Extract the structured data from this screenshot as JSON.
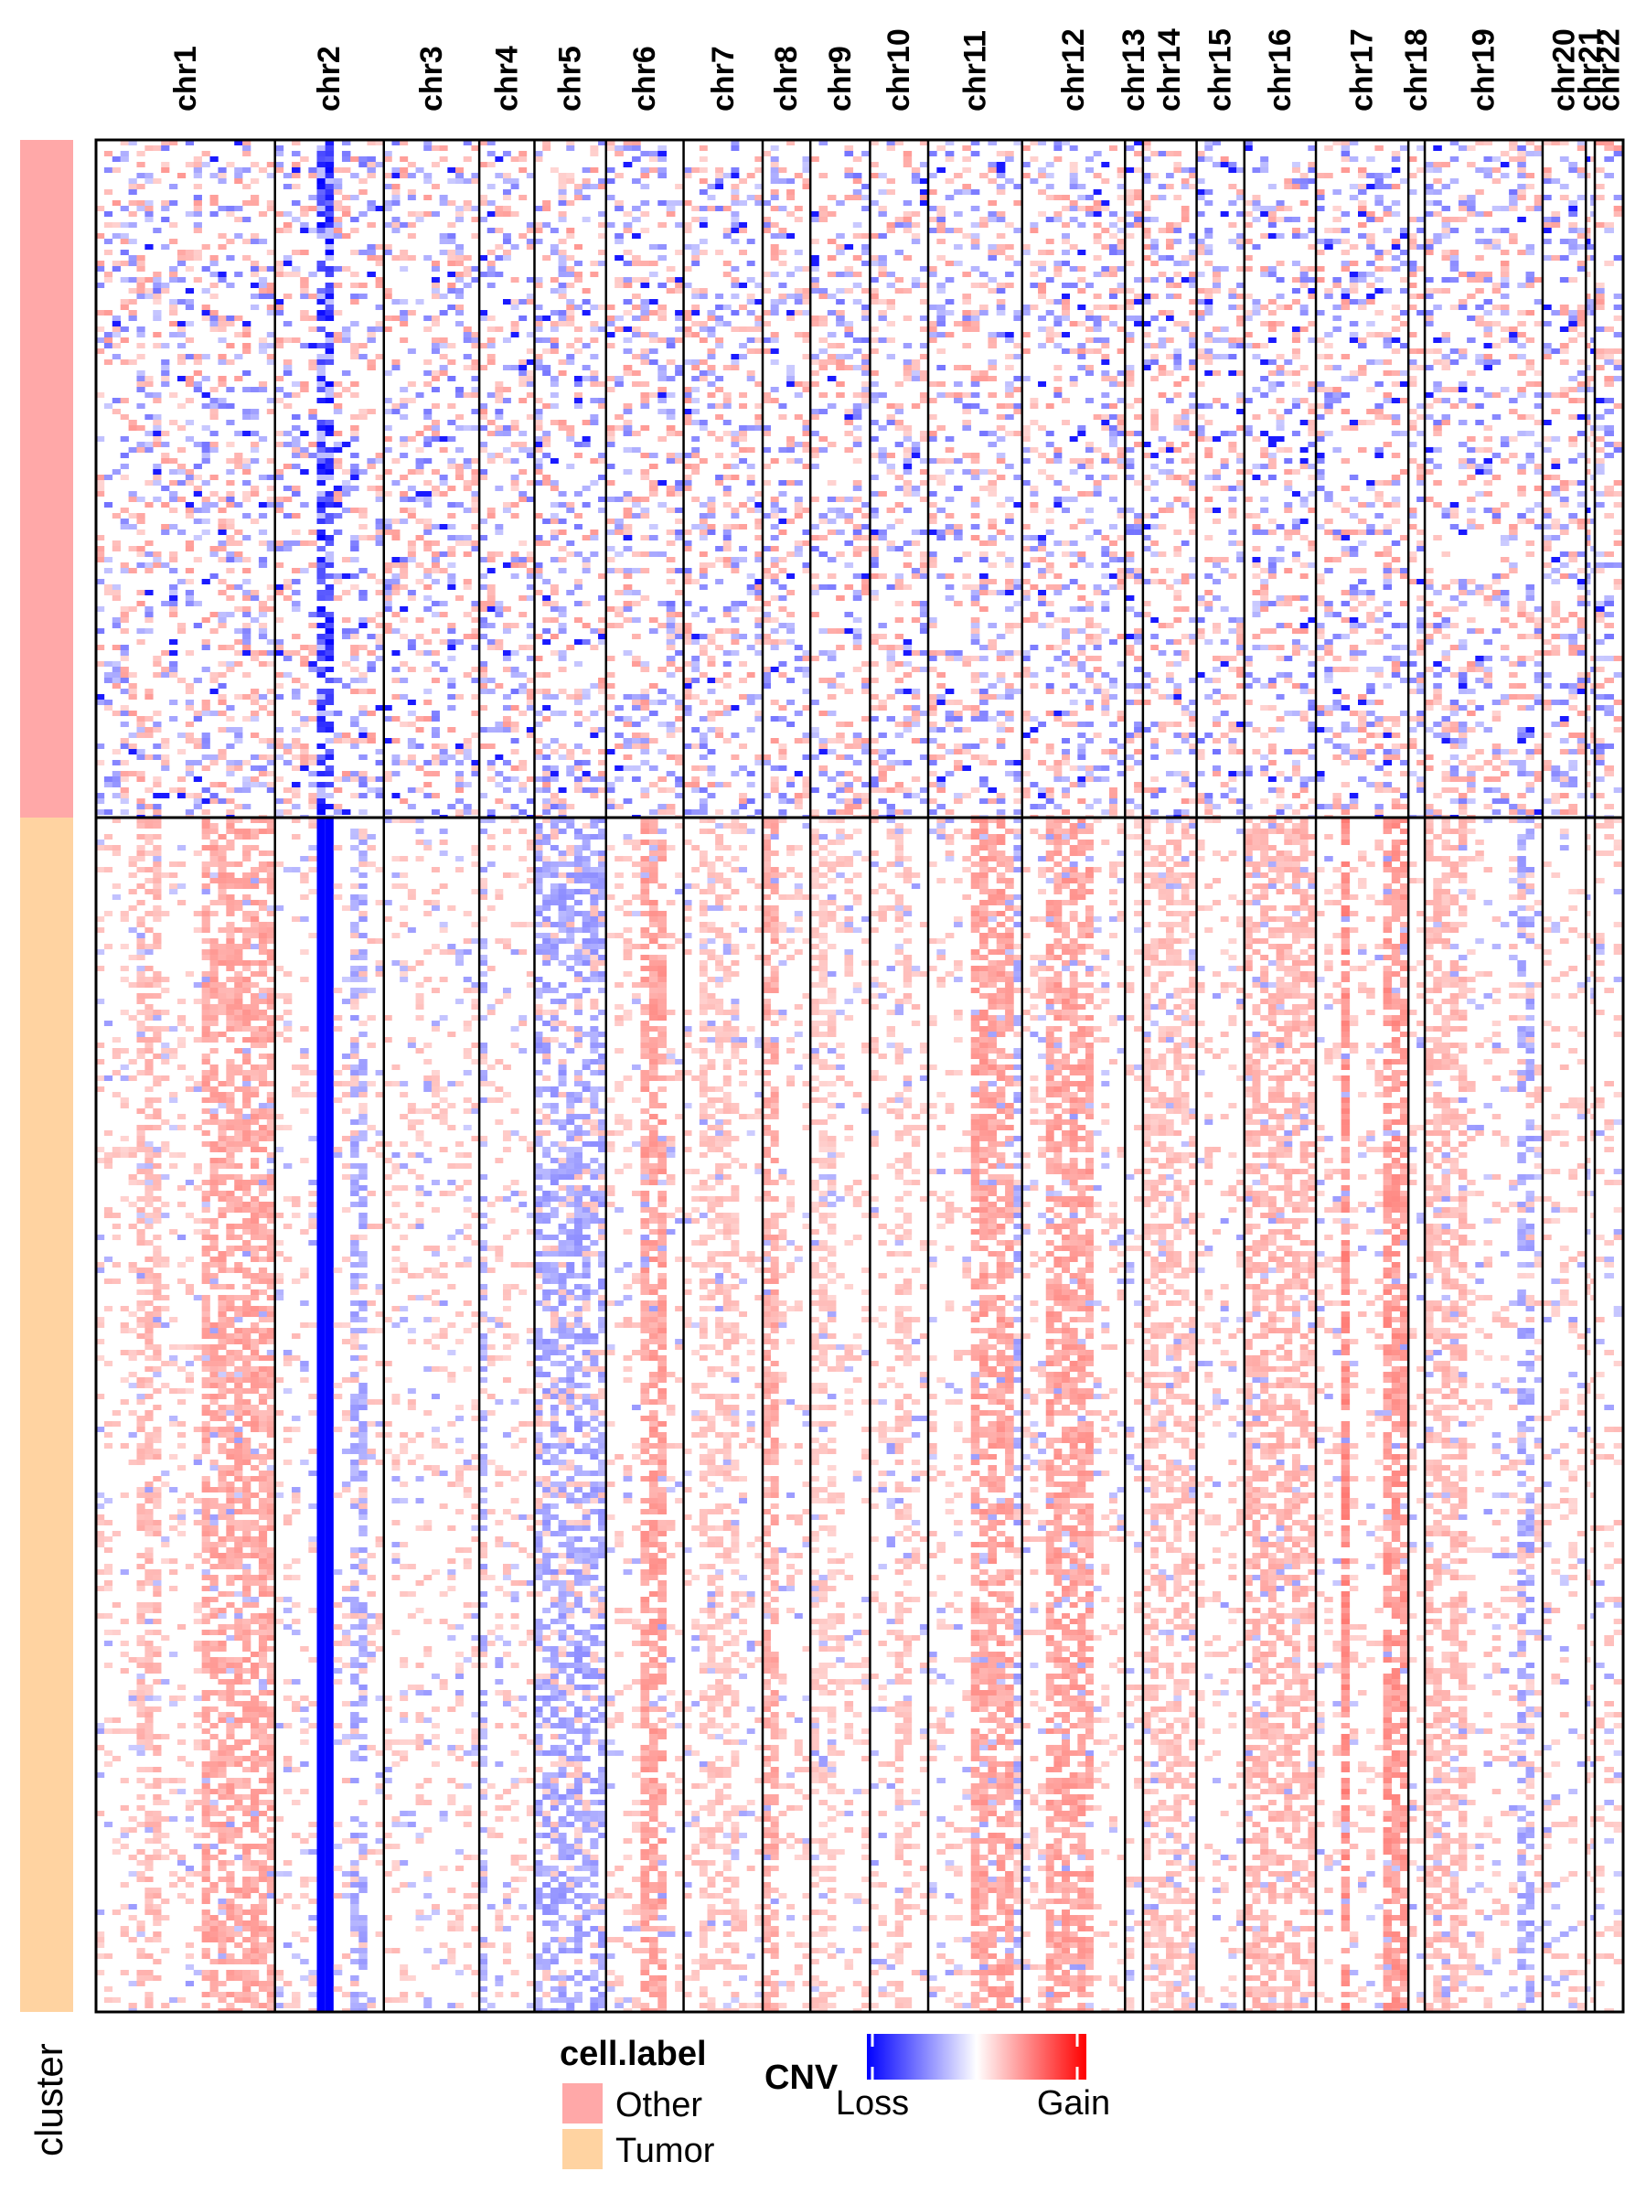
{
  "chart_data": {
    "type": "heatmap",
    "title": "",
    "chromosomes": [
      {
        "name": "chr1",
        "share": 12.0
      },
      {
        "name": "chr2",
        "share": 7.3
      },
      {
        "name": "chr3",
        "share": 6.4
      },
      {
        "name": "chr4",
        "share": 3.7
      },
      {
        "name": "chr5",
        "share": 4.8
      },
      {
        "name": "chr6",
        "share": 5.2
      },
      {
        "name": "chr7",
        "share": 5.3
      },
      {
        "name": "chr8",
        "share": 3.2
      },
      {
        "name": "chr9",
        "share": 4.0
      },
      {
        "name": "chr10",
        "share": 3.9
      },
      {
        "name": "chr11",
        "share": 6.3
      },
      {
        "name": "chr12",
        "share": 6.9
      },
      {
        "name": "chr13",
        "share": 1.2
      },
      {
        "name": "chr14",
        "share": 3.6
      },
      {
        "name": "chr15",
        "share": 3.2
      },
      {
        "name": "chr16",
        "share": 4.8
      },
      {
        "name": "chr17",
        "share": 6.2
      },
      {
        "name": "chr18",
        "share": 1.1
      },
      {
        "name": "chr19",
        "share": 7.9
      },
      {
        "name": "chr20",
        "share": 2.9
      },
      {
        "name": "chr21",
        "share": 0.6
      },
      {
        "name": "chr22",
        "share": 1.9
      }
    ],
    "clusters": [
      {
        "label": "Other",
        "row_share": 0.362,
        "color": "#FFA8A8"
      },
      {
        "label": "Tumor",
        "row_share": 0.638,
        "color": "#FFD3A1"
      }
    ],
    "annotation_label": "cluster",
    "cell_label_legend": {
      "title": "cell.label",
      "entries": [
        {
          "label": "Other",
          "color": "#FFA8A8"
        },
        {
          "label": "Tumor",
          "color": "#FFD3A1"
        }
      ]
    },
    "cnv_legend": {
      "title": "CNV",
      "low_label": "Loss",
      "high_label": "Gain",
      "colors": [
        "#0000FF",
        "#FFFFFF",
        "#FF0000"
      ]
    },
    "tumor_gain_regions": [
      {
        "chromosome": "chr1",
        "from": 0.25,
        "to": 0.35,
        "strength": 0.3
      },
      {
        "chromosome": "chr1",
        "from": 0.6,
        "to": 1.0,
        "strength": 0.5
      },
      {
        "chromosome": "chr6",
        "from": 0.5,
        "to": 0.8,
        "strength": 0.55
      },
      {
        "chromosome": "chr7",
        "from": 0.2,
        "to": 0.7,
        "strength": 0.2
      },
      {
        "chromosome": "chr8",
        "from": 0.0,
        "to": 0.35,
        "strength": 0.45
      },
      {
        "chromosome": "chr9",
        "from": 0.0,
        "to": 0.4,
        "strength": 0.15
      },
      {
        "chromosome": "chr10",
        "from": 0.4,
        "to": 0.7,
        "strength": 0.2
      },
      {
        "chromosome": "chr11",
        "from": 0.5,
        "to": 0.9,
        "strength": 0.55
      },
      {
        "chromosome": "chr12",
        "from": 0.2,
        "to": 0.7,
        "strength": 0.55
      },
      {
        "chromosome": "chr14",
        "from": 0.0,
        "to": 1.0,
        "strength": 0.25
      },
      {
        "chromosome": "chr16",
        "from": 0.0,
        "to": 1.0,
        "strength": 0.35
      },
      {
        "chromosome": "chr17",
        "from": 0.25,
        "to": 0.4,
        "strength": 0.75
      },
      {
        "chromosome": "chr17",
        "from": 0.7,
        "to": 1.0,
        "strength": 0.65
      },
      {
        "chromosome": "chr19",
        "from": 0.0,
        "to": 0.35,
        "strength": 0.3
      }
    ],
    "tumor_loss_regions": [
      {
        "chromosome": "chr2",
        "from": 0.35,
        "to": 0.5,
        "strength": 1.0
      },
      {
        "chromosome": "chr2",
        "from": 0.7,
        "to": 0.85,
        "strength": 0.35
      },
      {
        "chromosome": "chr4",
        "from": 0.0,
        "to": 0.2,
        "strength": 0.3
      },
      {
        "chromosome": "chr5",
        "from": 0.0,
        "to": 1.0,
        "strength": 0.4
      },
      {
        "chromosome": "chr11",
        "from": 0.9,
        "to": 1.0,
        "strength": 0.35
      },
      {
        "chromosome": "chr19",
        "from": 0.8,
        "to": 0.95,
        "strength": 0.35
      }
    ],
    "other_loss_regions": [
      {
        "chromosome": "chr2",
        "from": 0.35,
        "to": 0.5,
        "strength": 0.85
      }
    ],
    "grid": false,
    "legend_position": "bottom"
  }
}
